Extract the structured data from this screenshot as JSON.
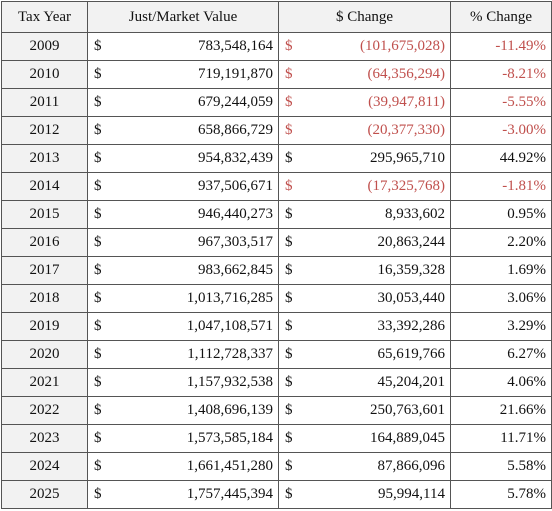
{
  "table": {
    "header": [
      "Tax Year",
      "Just/Market Value",
      "$ Change",
      "% Change"
    ],
    "rows": [
      [
        "2009",
        "$",
        "783,548,164",
        "$",
        "(101,675,028)",
        "-11.49%"
      ],
      [
        "2010",
        "$",
        "719,191,870",
        "$",
        "(64,356,294)",
        "-8.21%"
      ],
      [
        "2011",
        "$",
        "679,244,059",
        "$",
        "(39,947,811)",
        "-5.55%"
      ],
      [
        "2012",
        "$",
        "658,866,729",
        "$",
        "(20,377,330)",
        "-3.00%"
      ],
      [
        "2013",
        "$",
        "954,832,439",
        "$",
        "295,965,710",
        "44.92%"
      ],
      [
        "2014",
        "$",
        "937,506,671",
        "$",
        "(17,325,768)",
        "-1.81%"
      ],
      [
        "2015",
        "$",
        "946,440,273",
        "$",
        "8,933,602",
        "0.95%"
      ],
      [
        "2016",
        "$",
        "967,303,517",
        "$",
        "20,863,244",
        "2.20%"
      ],
      [
        "2017",
        "$",
        "983,662,845",
        "$",
        "16,359,328",
        "1.69%"
      ],
      [
        "2018",
        "$",
        "1,013,716,285",
        "$",
        "30,053,440",
        "3.06%"
      ],
      [
        "2019",
        "$",
        "1,047,108,571",
        "$",
        "33,392,286",
        "3.29%"
      ],
      [
        "2020",
        "$",
        "1,112,728,337",
        "$",
        "65,619,766",
        "6.27%"
      ],
      [
        "2021",
        "$",
        "1,157,932,538",
        "$",
        "45,204,201",
        "4.06%"
      ],
      [
        "2022",
        "$",
        "1,408,696,139",
        "$",
        "250,763,601",
        "21.66%"
      ],
      [
        "2023",
        "$",
        "1,573,585,184",
        "$",
        "164,889,045",
        "11.71%"
      ],
      [
        "2024",
        "$",
        "1,661,451,280",
        "$",
        "87,866,096",
        "5.58%"
      ],
      [
        "2025",
        "$",
        "1,757,445,394",
        "$",
        "95,994,114",
        "5.78%"
      ]
    ]
  }
}
